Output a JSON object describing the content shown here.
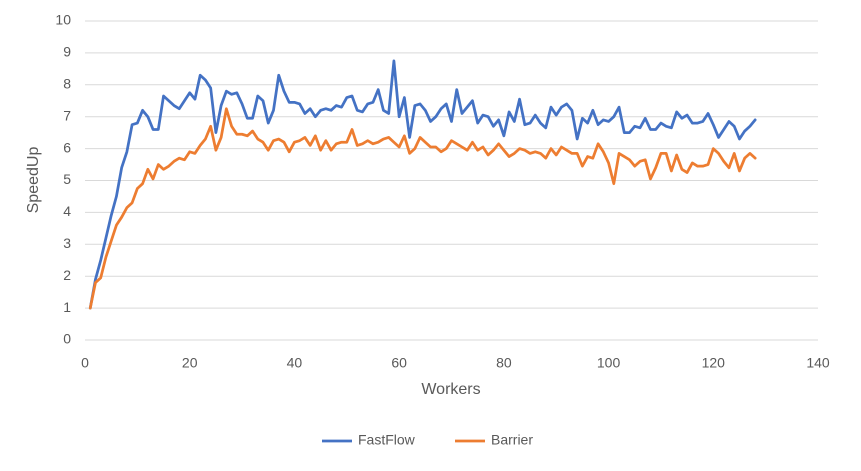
{
  "chart_data": {
    "type": "line",
    "x_label": "Workers",
    "y_label": "SpeedUp",
    "xlim": [
      0,
      140
    ],
    "xticks": [
      0,
      20,
      40,
      60,
      80,
      100,
      120,
      140
    ],
    "ylim": [
      0,
      10
    ],
    "yticks": [
      0,
      1,
      2,
      3,
      4,
      5,
      6,
      7,
      8,
      9,
      10
    ],
    "grid": true,
    "legend": "bottom",
    "x": [
      1,
      2,
      3,
      4,
      5,
      6,
      7,
      8,
      9,
      10,
      11,
      12,
      13,
      14,
      15,
      16,
      17,
      18,
      19,
      20,
      21,
      22,
      23,
      24,
      25,
      26,
      27,
      28,
      29,
      30,
      31,
      32,
      33,
      34,
      35,
      36,
      37,
      38,
      39,
      40,
      41,
      42,
      43,
      44,
      45,
      46,
      47,
      48,
      49,
      50,
      51,
      52,
      53,
      54,
      55,
      56,
      57,
      58,
      59,
      60,
      61,
      62,
      63,
      64,
      65,
      66,
      67,
      68,
      69,
      70,
      71,
      72,
      73,
      74,
      75,
      76,
      77,
      78,
      79,
      80,
      81,
      82,
      83,
      84,
      85,
      86,
      87,
      88,
      89,
      90,
      91,
      92,
      93,
      94,
      95,
      96,
      97,
      98,
      99,
      100,
      101,
      102,
      103,
      104,
      105,
      106,
      107,
      108,
      109,
      110,
      111,
      112,
      113,
      114,
      115,
      116,
      117,
      118,
      119,
      120,
      121,
      122,
      123,
      124,
      125,
      126,
      127,
      128
    ],
    "series": [
      {
        "name": "FastFlow",
        "color": "#4472c4",
        "values": [
          1.0,
          1.9,
          2.5,
          3.2,
          3.9,
          4.5,
          5.4,
          5.9,
          6.75,
          6.8,
          7.2,
          7.0,
          6.6,
          6.6,
          7.65,
          7.5,
          7.35,
          7.25,
          7.5,
          7.75,
          7.55,
          8.3,
          8.15,
          7.9,
          6.5,
          7.35,
          7.8,
          7.7,
          7.75,
          7.4,
          6.95,
          6.95,
          7.65,
          7.5,
          6.8,
          7.2,
          8.3,
          7.8,
          7.45,
          7.45,
          7.4,
          7.1,
          7.25,
          7.0,
          7.2,
          7.25,
          7.2,
          7.35,
          7.3,
          7.6,
          7.65,
          7.2,
          7.15,
          7.4,
          7.45,
          7.85,
          7.2,
          7.1,
          8.75,
          7.0,
          7.6,
          6.35,
          7.35,
          7.4,
          7.2,
          6.85,
          7.0,
          7.25,
          7.4,
          6.85,
          7.85,
          7.1,
          7.3,
          7.5,
          6.8,
          7.05,
          7.0,
          6.7,
          6.9,
          6.4,
          7.15,
          6.85,
          7.55,
          6.75,
          6.8,
          7.05,
          6.8,
          6.65,
          7.3,
          7.05,
          7.3,
          7.4,
          7.2,
          6.3,
          6.95,
          6.8,
          7.2,
          6.75,
          6.9,
          6.85,
          7.0,
          7.3,
          6.5,
          6.5,
          6.7,
          6.65,
          6.95,
          6.6,
          6.6,
          6.8,
          6.7,
          6.65,
          7.15,
          6.95,
          7.05,
          6.8,
          6.8,
          6.85,
          7.1,
          6.75,
          6.35,
          6.6,
          6.85,
          6.7,
          6.3,
          6.55,
          6.7,
          6.9
        ]
      },
      {
        "name": "Barrier",
        "color": "#ed7d31",
        "values": [
          1.0,
          1.8,
          1.95,
          2.6,
          3.1,
          3.6,
          3.85,
          4.15,
          4.3,
          4.75,
          4.9,
          5.35,
          5.05,
          5.5,
          5.35,
          5.45,
          5.6,
          5.7,
          5.65,
          5.9,
          5.85,
          6.1,
          6.3,
          6.7,
          5.95,
          6.35,
          7.25,
          6.7,
          6.45,
          6.45,
          6.4,
          6.55,
          6.3,
          6.2,
          5.95,
          6.25,
          6.3,
          6.2,
          5.9,
          6.2,
          6.25,
          6.35,
          6.1,
          6.4,
          5.95,
          6.25,
          5.95,
          6.15,
          6.2,
          6.2,
          6.6,
          6.1,
          6.15,
          6.25,
          6.15,
          6.2,
          6.3,
          6.35,
          6.2,
          6.05,
          6.4,
          5.85,
          6.0,
          6.35,
          6.2,
          6.05,
          6.05,
          5.9,
          6.0,
          6.25,
          6.15,
          6.05,
          5.95,
          6.2,
          5.95,
          6.05,
          5.8,
          5.95,
          6.15,
          5.95,
          5.75,
          5.85,
          6.0,
          5.95,
          5.85,
          5.9,
          5.85,
          5.7,
          6.0,
          5.8,
          6.05,
          5.95,
          5.85,
          5.85,
          5.45,
          5.75,
          5.7,
          6.15,
          5.9,
          5.55,
          4.9,
          5.85,
          5.75,
          5.65,
          5.45,
          5.6,
          5.65,
          5.05,
          5.4,
          5.85,
          5.85,
          5.3,
          5.8,
          5.35,
          5.25,
          5.55,
          5.45,
          5.45,
          5.5,
          6.0,
          5.85,
          5.6,
          5.4,
          5.85,
          5.3,
          5.7,
          5.85,
          5.7
        ]
      }
    ]
  }
}
